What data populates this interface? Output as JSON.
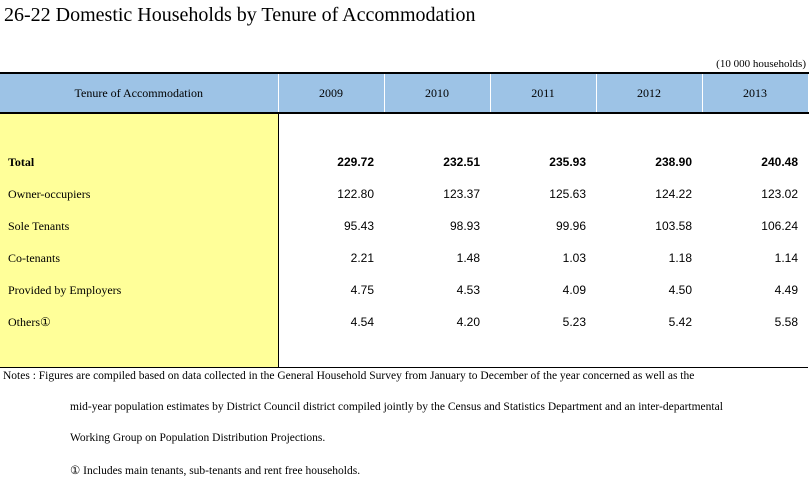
{
  "title": "26-22  Domestic Households by Tenure of Accommodation",
  "unit": "(10 000 households)",
  "table": {
    "header_label": "Tenure of Accommodation",
    "years": [
      "2009",
      "2010",
      "2011",
      "2012",
      "2013"
    ],
    "rows": [
      {
        "label": "Total",
        "values": [
          "229.72",
          "232.51",
          "235.93",
          "238.90",
          "240.48"
        ]
      },
      {
        "label": "Owner-occupiers",
        "values": [
          "122.80",
          "123.37",
          "125.63",
          "124.22",
          "123.02"
        ]
      },
      {
        "label": "Sole Tenants",
        "values": [
          "95.43",
          "98.93",
          "99.96",
          "103.58",
          "106.24"
        ]
      },
      {
        "label": "Co-tenants",
        "values": [
          "2.21",
          "1.48",
          "1.03",
          "1.18",
          "1.14"
        ]
      },
      {
        "label": "Provided by Employers",
        "values": [
          "4.75",
          "4.53",
          "4.09",
          "4.50",
          "4.49"
        ]
      },
      {
        "label": "Others①",
        "values": [
          "4.54",
          "4.20",
          "5.23",
          "5.42",
          "5.58"
        ]
      }
    ]
  },
  "notes": {
    "line1": "Notes : Figures are compiled based on data collected in the General Household Survey from January to December of the year concerned as well as the",
    "line2": "mid-year population estimates by District Council district compiled jointly by the Census and Statistics Department and an inter-departmental",
    "line3": "Working Group on Population Distribution Projections.",
    "line4": "① Includes main tenants, sub-tenants and rent free households."
  }
}
